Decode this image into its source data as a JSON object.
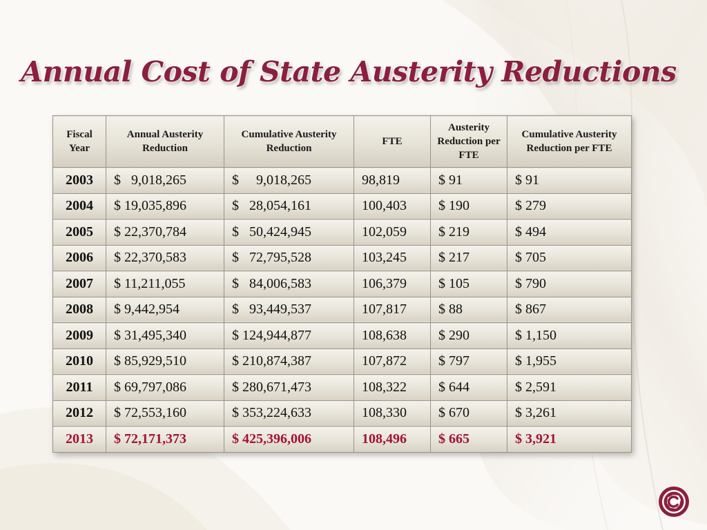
{
  "slide": {
    "title": "Annual Cost of State Austerity Reductions"
  },
  "table": {
    "headers": [
      "Fiscal Year",
      "Annual Austerity Reduction",
      "Cumulative Austerity Reduction",
      "FTE",
      "Austerity Reduction per FTE",
      "Cumulative Austerity Reduction per FTE"
    ],
    "rows": [
      [
        "2003",
        "$   9,018,265",
        "$     9,018,265",
        "98,819",
        "$ 91",
        "$ 91"
      ],
      [
        "2004",
        "$ 19,035,896",
        "$   28,054,161",
        "100,403",
        "$ 190",
        "$ 279"
      ],
      [
        "2005",
        "$ 22,370,784",
        "$   50,424,945",
        "102,059",
        "$ 219",
        "$ 494"
      ],
      [
        "2006",
        "$ 22,370,583",
        "$   72,795,528",
        "103,245",
        "$ 217",
        "$ 705"
      ],
      [
        "2007",
        "$ 11,211,055",
        "$   84,006,583",
        "106,379",
        "$ 105",
        "$ 790"
      ],
      [
        "2008",
        "$ 9,442,954",
        "$   93,449,537",
        "107,817",
        "$ 88",
        "$ 867"
      ],
      [
        "2009",
        "$ 31,495,340",
        "$ 124,944,877",
        "108,638",
        "$ 290",
        "$ 1,150"
      ],
      [
        "2010",
        "$ 85,929,510",
        "$ 210,874,387",
        "107,872",
        "$ 797",
        "$ 1,955"
      ],
      [
        "2011",
        "$ 69,797,086",
        "$ 280,671,473",
        "108,322",
        "$ 644",
        "$ 2,591"
      ],
      [
        "2012",
        "$ 72,553,160",
        "$ 353,224,633",
        "108,330",
        "$ 670",
        "$ 3,261"
      ],
      [
        "2013",
        "$ 72,171,373",
        "$ 425,396,006",
        "108,496",
        "$ 665",
        "$ 3,921"
      ]
    ]
  },
  "colors": {
    "title": "#8b1f3e",
    "highlight_row": "#a3123a",
    "logo": "#8b1f3e"
  },
  "logo": {
    "icon": "college-c-state-outline-logo"
  }
}
